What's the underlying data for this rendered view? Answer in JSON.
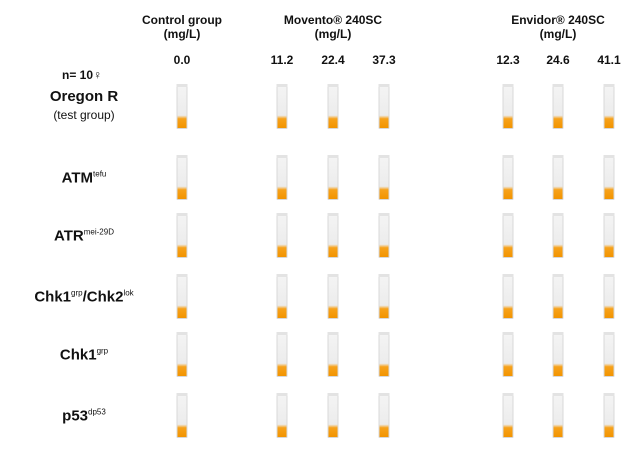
{
  "groups": [
    {
      "title": "Control group",
      "unit": "(mg/L)",
      "concentrations": [
        "0.0"
      ]
    },
    {
      "title": "Movento® 240SC",
      "unit": "(mg/L)",
      "concentrations": [
        "11.2",
        "22.4",
        "37.3"
      ]
    },
    {
      "title": "Envidor® 240SC",
      "unit": "(mg/L)",
      "concentrations": [
        "12.3",
        "24.6",
        "41.1"
      ]
    }
  ],
  "sample_size": "n= 10♀",
  "rows": [
    {
      "label": "Oregon R",
      "note": "(test group)"
    },
    {
      "label": "ATM",
      "sup": "tefu"
    },
    {
      "label": "ATR",
      "sup": "mei-29D"
    },
    {
      "label": "Chk1",
      "sup": "grp",
      "label2": "/Chk2",
      "sup2": "lok"
    },
    {
      "label": "Chk1",
      "sup": "grp"
    },
    {
      "label": "p53",
      "sup": "dp53"
    }
  ]
}
